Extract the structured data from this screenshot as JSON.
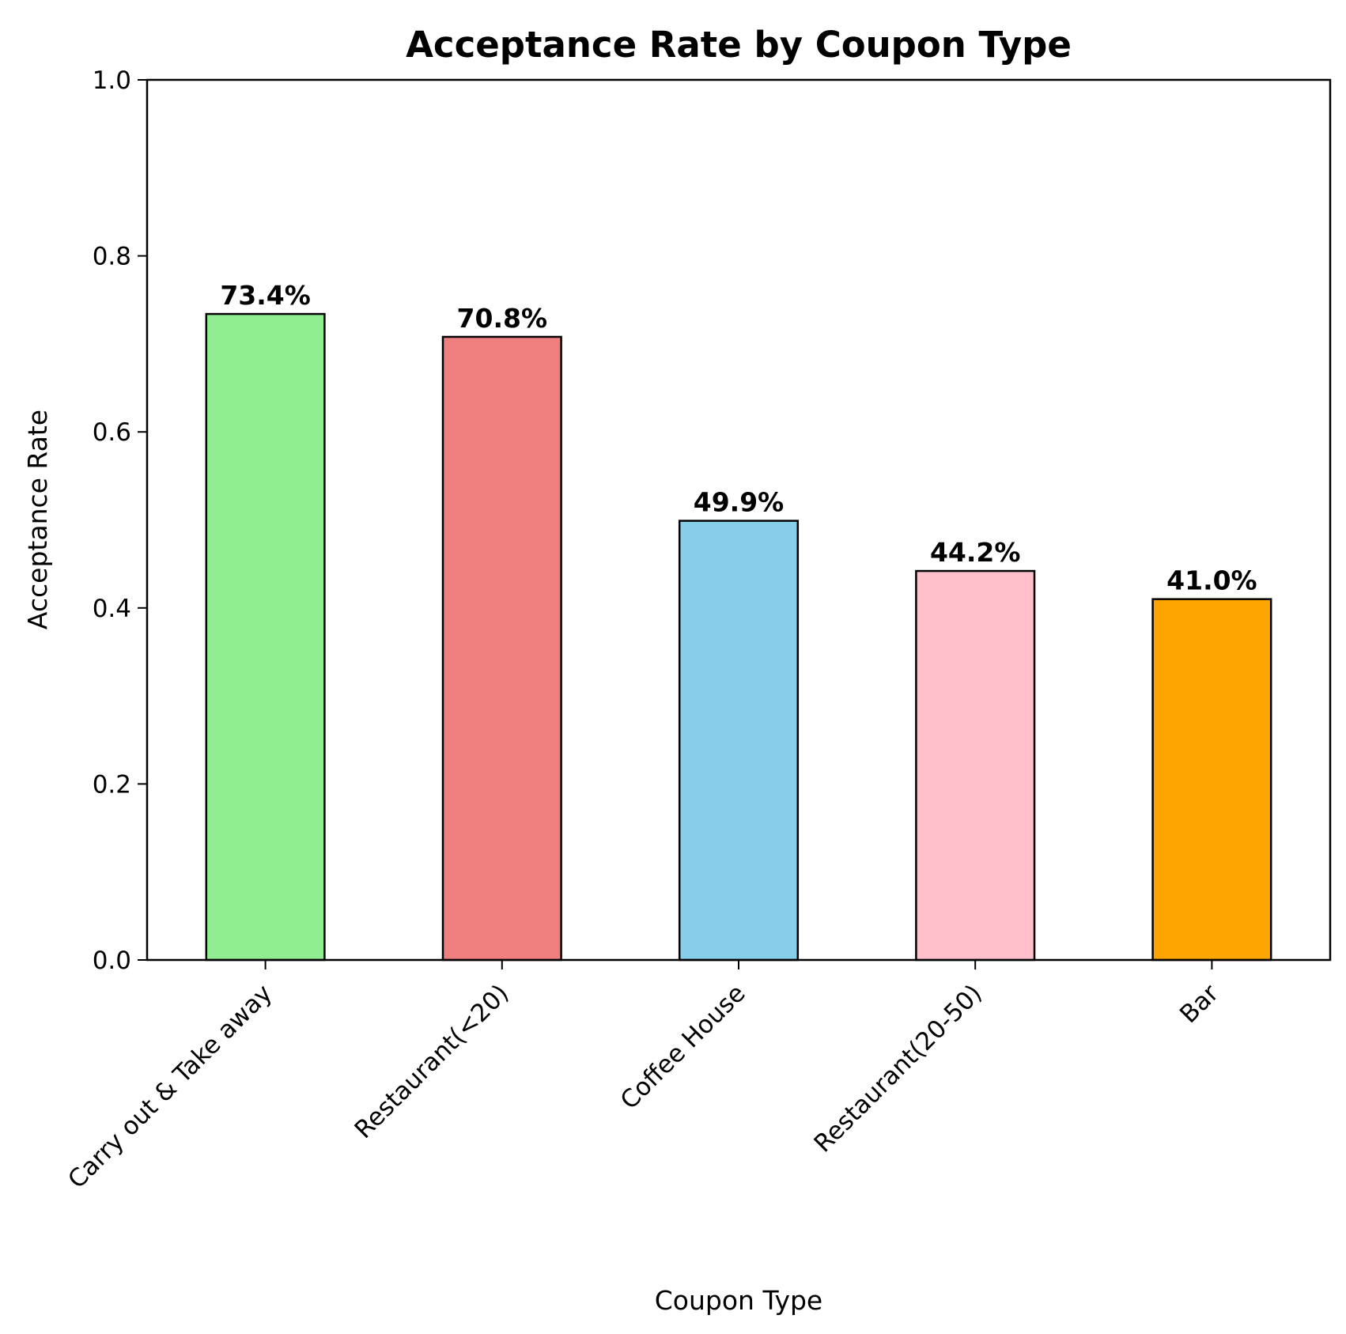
{
  "chart_data": {
    "type": "bar",
    "title": "Acceptance Rate by Coupon Type",
    "xlabel": "Coupon Type",
    "ylabel": "Acceptance Rate",
    "categories": [
      "Carry out & Take away",
      "Restaurant(<20)",
      "Coffee House",
      "Restaurant(20-50)",
      "Bar"
    ],
    "values": [
      0.734,
      0.708,
      0.499,
      0.442,
      0.41
    ],
    "value_labels": [
      "73.4%",
      "70.8%",
      "49.9%",
      "44.2%",
      "41.0%"
    ],
    "colors": [
      "#90ee90",
      "#f08080",
      "#87ceeb",
      "#ffc0cb",
      "#ffa500"
    ],
    "edge_color": "#000000",
    "ylim": [
      0,
      1.0
    ],
    "yticks": [
      0.0,
      0.2,
      0.4,
      0.6,
      0.8,
      1.0
    ],
    "ytick_labels": [
      "0.0",
      "0.2",
      "0.4",
      "0.6",
      "0.8",
      "1.0"
    ],
    "xtick_rotation": 45,
    "grid": false,
    "legend": "none"
  }
}
